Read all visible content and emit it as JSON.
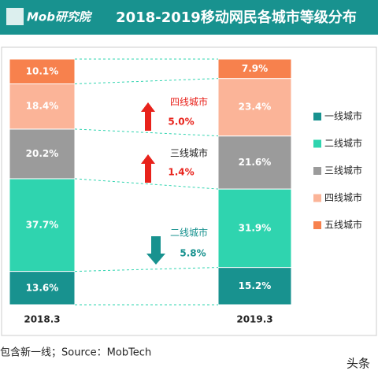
{
  "header": {
    "logo": "Mob研究院"
  },
  "chart_data": {
    "type": "stacked-bar",
    "title": "2018-2019移动网民各城市等级分布",
    "categories": [
      "2018.3",
      "2019.3"
    ],
    "series": [
      {
        "name": "一线城市",
        "color": "#18928f",
        "values": [
          13.6,
          15.2
        ],
        "value_labels": [
          "13.6%",
          "15.2%"
        ]
      },
      {
        "name": "二线城市",
        "color": "#2fd4af",
        "values": [
          37.7,
          31.9
        ],
        "value_labels": [
          "37.7%",
          "31.9%"
        ]
      },
      {
        "name": "三线城市",
        "color": "#9b9b9b",
        "values": [
          20.2,
          21.6
        ],
        "value_labels": [
          "20.2%",
          "21.6%"
        ]
      },
      {
        "name": "四线城市",
        "color": "#fbb498",
        "values": [
          18.4,
          23.4
        ],
        "value_labels": [
          "18.4%",
          "23.4%"
        ]
      },
      {
        "name": "五线城市",
        "color": "#f7814d",
        "values": [
          10.1,
          7.9
        ],
        "value_labels": [
          "10.1%",
          "7.9%"
        ]
      }
    ],
    "ylim": [
      0,
      100
    ],
    "annotations": [
      {
        "label": "四线城市",
        "change": "5.0%",
        "direction": "up",
        "color": "#e8221b",
        "label_color": "#e8221b"
      },
      {
        "label": "三线城市",
        "change": "1.4%",
        "direction": "up",
        "color": "#e8221b",
        "label_color": "#222222"
      },
      {
        "label": "二线城市",
        "change": "5.8%",
        "direction": "down",
        "color": "#18928f",
        "label_color": "#18928f"
      }
    ]
  },
  "footer": {
    "source": "包含新一线；Source：MobTech",
    "mark": "头条"
  }
}
